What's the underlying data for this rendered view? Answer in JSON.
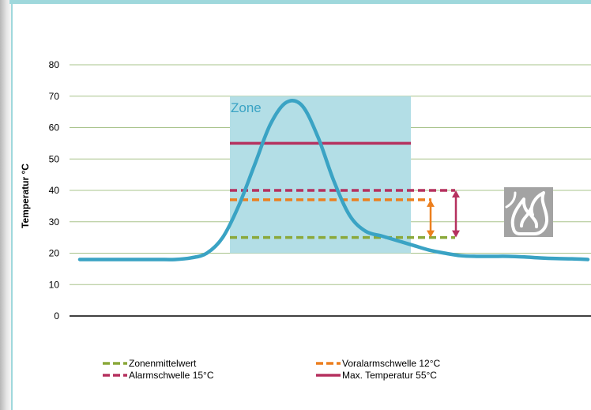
{
  "chart_data": {
    "type": "line",
    "ylabel": "Temperatur °C",
    "xlabel": "",
    "ylim": [
      0,
      80
    ],
    "yticks": [
      0,
      10,
      20,
      30,
      40,
      50,
      60,
      70,
      80
    ],
    "grid": true,
    "zone": {
      "label": "Zone",
      "y_range": [
        20,
        70
      ],
      "color": "#b3dee6"
    },
    "series": [
      {
        "color": "#3aa3c4",
        "y": [
          18,
          18,
          18,
          18,
          18,
          18,
          18,
          18.5,
          20,
          25,
          35,
          48,
          61,
          68,
          67,
          57,
          43,
          32,
          27,
          25.5,
          24,
          22.5,
          21,
          20,
          19.2,
          19,
          19,
          19,
          18.8,
          18.5,
          18.3,
          18.2,
          18
        ]
      }
    ],
    "thresholds": [
      {
        "name": "Zonenmittelwert",
        "value": 25,
        "color": "#8aa83a",
        "style": "dashed"
      },
      {
        "name": "Voralarmschwelle 12°C",
        "value": 37,
        "color": "#ec7f1e",
        "style": "dashed"
      },
      {
        "name": "Alarmschwelle 15°C",
        "value": 40,
        "color": "#b5315f",
        "style": "dashed"
      },
      {
        "name": "Max. Temperatur 55°C",
        "value": 55,
        "color": "#b5315f",
        "style": "solid"
      }
    ],
    "legend_placement": "bottom",
    "fire_icon": "fire-icon"
  }
}
